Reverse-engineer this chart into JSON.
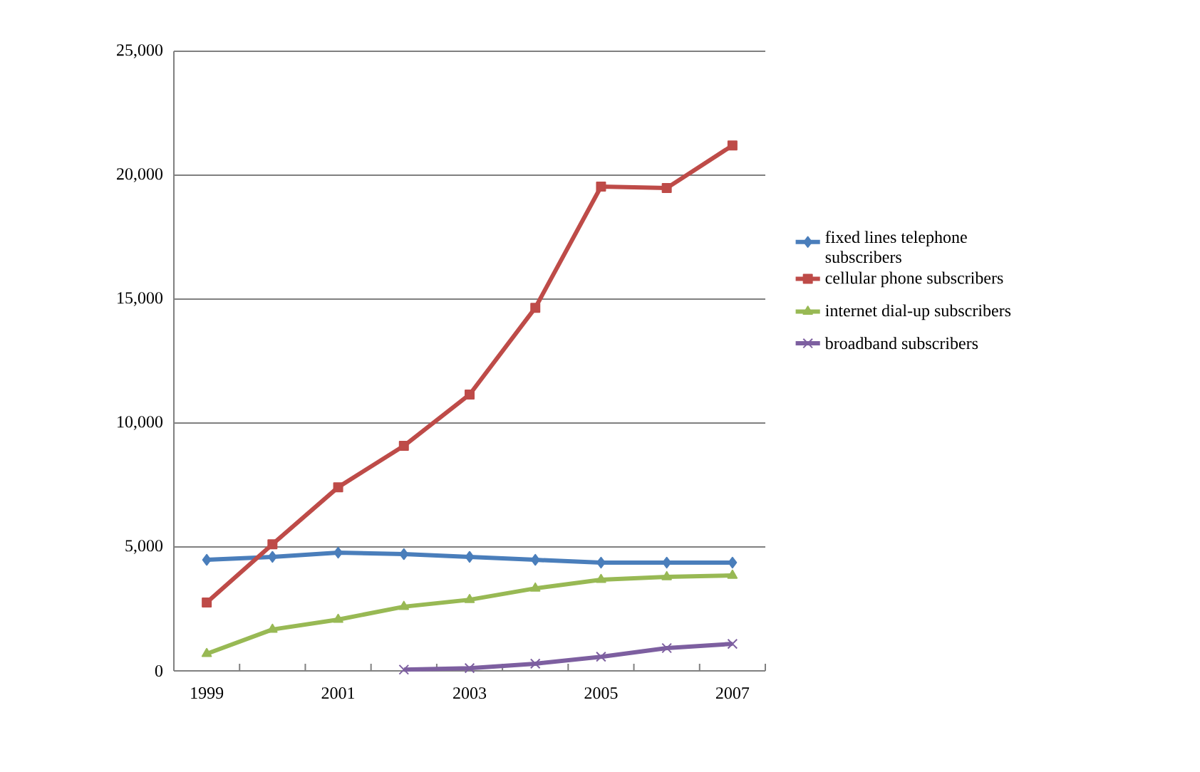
{
  "chart_data": {
    "type": "line",
    "categories": [
      "1999",
      null,
      "2001",
      null,
      "2003",
      null,
      "2005",
      null,
      "2007"
    ],
    "series": [
      {
        "name": "fixed lines telephone subscribers",
        "color": "#4a7ebb",
        "marker": "diamond",
        "values": [
          4480,
          4600,
          4770,
          4710,
          4600,
          4480,
          4370,
          4370,
          4370
        ]
      },
      {
        "name": "cellular phone subscribers",
        "color": "#be4b48",
        "marker": "square",
        "values": [
          2760,
          5110,
          7410,
          9080,
          11150,
          14650,
          19540,
          19480,
          21200
        ]
      },
      {
        "name": "internet dial-up subscribers",
        "color": "#98b954",
        "marker": "triangle",
        "values": [
          690,
          1670,
          2070,
          2590,
          2870,
          3330,
          3680,
          3790,
          3850
        ]
      },
      {
        "name": "broadband subscribers",
        "color": "#7d5fa0",
        "marker": "cross",
        "values": [
          null,
          null,
          null,
          50,
          110,
          290,
          570,
          920,
          1090
        ]
      }
    ],
    "ylim": [
      0,
      25000
    ],
    "yticks": [
      {
        "value": 0,
        "label": "0"
      },
      {
        "value": 5000,
        "label": "5,000"
      },
      {
        "value": 10000,
        "label": "10,000"
      },
      {
        "value": 15000,
        "label": "15,000"
      },
      {
        "value": 20000,
        "label": "20,000"
      },
      {
        "value": 25000,
        "label": "25,000"
      }
    ],
    "grid": "y",
    "legend": "right",
    "line_style": "solid"
  }
}
